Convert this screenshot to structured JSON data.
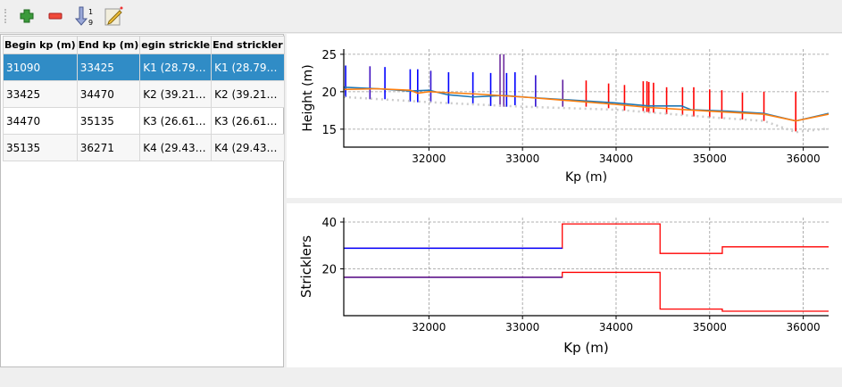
{
  "toolbar": {
    "buttons": [
      {
        "name": "add-row-button",
        "icon": "plus-icon"
      },
      {
        "name": "remove-row-button",
        "icon": "minus-icon"
      },
      {
        "name": "sort-button",
        "icon": "sort-ascending-icon",
        "glyph_top": "1",
        "glyph_bottom": "9"
      },
      {
        "name": "edit-button",
        "icon": "edit-note-icon"
      }
    ]
  },
  "table": {
    "columns": [
      "Begin kp (m)",
      "End kp (m)",
      "egin strickle",
      "End strickler"
    ],
    "rows": [
      [
        "31090",
        "33425",
        "K1 (28.79…",
        "K1 (28.79…"
      ],
      [
        "33425",
        "34470",
        "K2 (39.21…",
        "K2 (39.21…"
      ],
      [
        "34470",
        "35135",
        "K3 (26.61…",
        "K3 (26.61…"
      ],
      [
        "35135",
        "36271",
        "K4 (29.43…",
        "K4 (29.43…"
      ]
    ],
    "selected_row": 0
  },
  "chart_data": [
    {
      "type": "line",
      "xlabel": "Kp (m)",
      "ylabel": "Height (m)",
      "xlim": [
        31090,
        36271
      ],
      "ylim": [
        12.6,
        25.7
      ],
      "grid": true,
      "xticks": [
        32000,
        33000,
        34000,
        35000,
        36000
      ],
      "yticks": [
        15,
        20,
        25
      ],
      "series": [
        {
          "color": "#1f77b4",
          "x": [
            31090,
            31450,
            31800,
            32000,
            32200,
            32470,
            32800,
            33000,
            33500,
            34000,
            34350,
            34700,
            34800,
            35200,
            35580,
            35920,
            36271
          ],
          "y": [
            20.6,
            20.4,
            20.1,
            20.2,
            19.6,
            19.3,
            19.5,
            19.3,
            18.9,
            18.5,
            18.1,
            18.1,
            17.6,
            17.4,
            17.1,
            16.1,
            17.1
          ]
        },
        {
          "color": "#ff7f0e",
          "x": [
            31090,
            31450,
            31800,
            31880,
            32000,
            32500,
            33000,
            34000,
            34350,
            35000,
            35580,
            35920,
            36271
          ],
          "y": [
            20.3,
            20.4,
            20.2,
            19.8,
            20.0,
            19.7,
            19.3,
            18.3,
            17.9,
            17.4,
            17.0,
            16.1,
            17.0
          ]
        },
        {
          "color": "#cccccc",
          "dashed": true,
          "x": [
            31090,
            32000,
            33000,
            34000,
            35000,
            35580,
            35920,
            36271
          ],
          "y": [
            19.3,
            18.6,
            18.0,
            17.6,
            16.6,
            16.1,
            14.6,
            15.1
          ]
        }
      ],
      "bars": [
        {
          "x": 31110,
          "top": 23.5,
          "bottom": 19.3,
          "color": "#0000ff"
        },
        {
          "x": 31370,
          "top": 23.4,
          "bottom": 19.0,
          "color": "#4010c0"
        },
        {
          "x": 31530,
          "top": 23.3,
          "bottom": 19.0,
          "color": "#0000ff"
        },
        {
          "x": 31800,
          "top": 23.0,
          "bottom": 18.7,
          "color": "#0000ff"
        },
        {
          "x": 31880,
          "top": 23.0,
          "bottom": 18.6,
          "color": "#0000ff"
        },
        {
          "x": 32020,
          "top": 22.8,
          "bottom": 18.6,
          "color": "#3010d0"
        },
        {
          "x": 32210,
          "top": 22.6,
          "bottom": 18.4,
          "color": "#0000ff"
        },
        {
          "x": 32470,
          "top": 22.6,
          "bottom": 18.3,
          "color": "#0000ff"
        },
        {
          "x": 32660,
          "top": 22.5,
          "bottom": 18.1,
          "color": "#0000ff"
        },
        {
          "x": 32760,
          "top": 25.0,
          "bottom": 18.0,
          "color": "#7030a0"
        },
        {
          "x": 32800,
          "top": 25.0,
          "bottom": 18.0,
          "color": "#7030a0"
        },
        {
          "x": 32830,
          "top": 22.5,
          "bottom": 18.0,
          "color": "#0000ff"
        },
        {
          "x": 32920,
          "top": 22.6,
          "bottom": 18.2,
          "color": "#0000ff"
        },
        {
          "x": 33140,
          "top": 22.2,
          "bottom": 18.0,
          "color": "#3010d0"
        },
        {
          "x": 33430,
          "top": 21.6,
          "bottom": 18.0,
          "color": "#6020a0"
        },
        {
          "x": 33680,
          "top": 21.5,
          "bottom": 18.0,
          "color": "#ff0000"
        },
        {
          "x": 33920,
          "top": 21.1,
          "bottom": 17.8,
          "color": "#ff0000"
        },
        {
          "x": 34090,
          "top": 20.9,
          "bottom": 17.5,
          "color": "#ff0000"
        },
        {
          "x": 34290,
          "top": 21.4,
          "bottom": 17.4,
          "color": "#ff0000"
        },
        {
          "x": 34330,
          "top": 21.4,
          "bottom": 17.3,
          "color": "#ff0000"
        },
        {
          "x": 34350,
          "top": 21.3,
          "bottom": 17.2,
          "color": "#ff0000"
        },
        {
          "x": 34400,
          "top": 21.2,
          "bottom": 17.2,
          "color": "#ff0000"
        },
        {
          "x": 34540,
          "top": 20.6,
          "bottom": 17.0,
          "color": "#ff0000"
        },
        {
          "x": 34710,
          "top": 20.6,
          "bottom": 16.9,
          "color": "#ff0000"
        },
        {
          "x": 34830,
          "top": 20.6,
          "bottom": 16.7,
          "color": "#ff0000"
        },
        {
          "x": 35000,
          "top": 20.3,
          "bottom": 16.6,
          "color": "#ff0000"
        },
        {
          "x": 35130,
          "top": 20.2,
          "bottom": 16.4,
          "color": "#ff0000"
        },
        {
          "x": 35350,
          "top": 19.9,
          "bottom": 16.3,
          "color": "#ff0000"
        },
        {
          "x": 35580,
          "top": 20.0,
          "bottom": 16.1,
          "color": "#ff0000"
        },
        {
          "x": 35920,
          "top": 20.0,
          "bottom": 14.7,
          "color": "#ff0000"
        }
      ]
    },
    {
      "type": "line",
      "xlabel": "Kp (m)",
      "ylabel": "Stricklers",
      "xlim": [
        31090,
        36271
      ],
      "ylim": [
        0,
        41.9
      ],
      "grid": true,
      "xticks": [
        32000,
        33000,
        34000,
        35000,
        36000
      ],
      "yticks": [
        20,
        40
      ],
      "segments": [
        {
          "x0": 31090,
          "x1": 33425,
          "upper": 28.8,
          "lower": 16.4,
          "color": "#0000ff"
        },
        {
          "x0": 33425,
          "x1": 34470,
          "upper": 39.2,
          "lower": 18.5,
          "color": "#ff0000"
        },
        {
          "x0": 34470,
          "x1": 35135,
          "upper": 26.6,
          "lower": 2.8,
          "color": "#ff0000"
        },
        {
          "x0": 35135,
          "x1": 36271,
          "upper": 29.4,
          "lower": 1.9,
          "color": "#ff0000"
        }
      ]
    }
  ]
}
